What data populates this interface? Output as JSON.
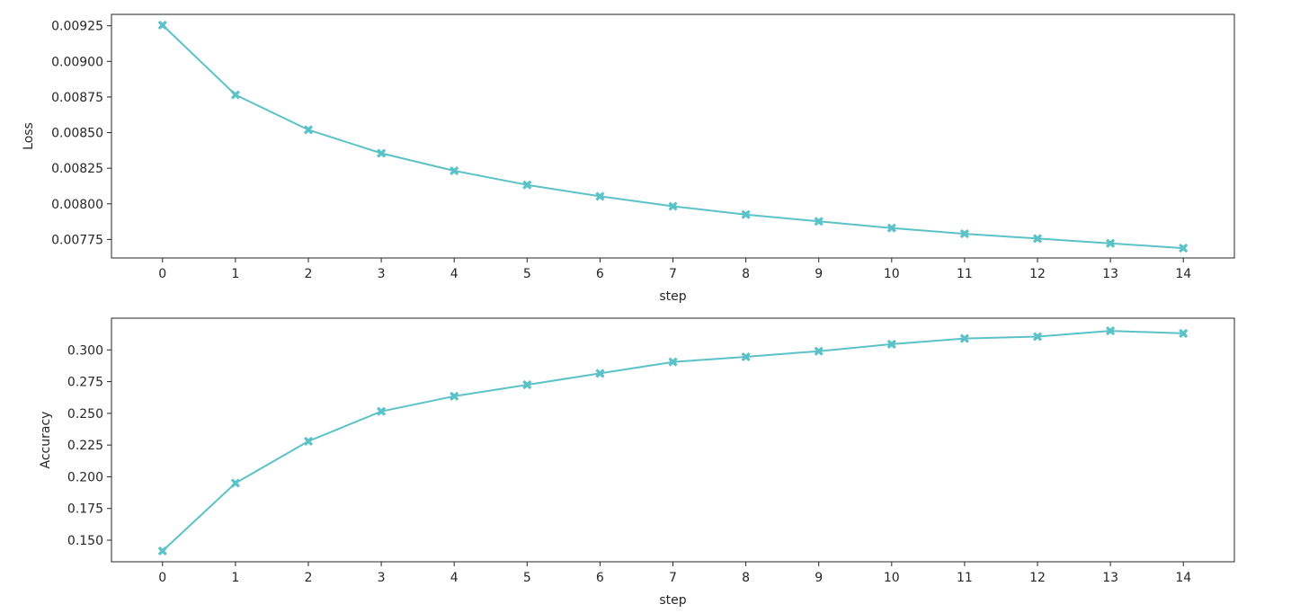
{
  "chart_data": [
    {
      "type": "line",
      "xlabel": "step",
      "ylabel": "Loss",
      "x": [
        0,
        1,
        2,
        3,
        4,
        5,
        6,
        7,
        8,
        9,
        10,
        11,
        12,
        13,
        14
      ],
      "xticks": [
        "0",
        "1",
        "2",
        "3",
        "4",
        "5",
        "6",
        "7",
        "8",
        "9",
        "10",
        "11",
        "12",
        "13",
        "14"
      ],
      "xlim": [
        -0.7,
        14.7
      ],
      "ylim": [
        0.00762,
        0.00933
      ],
      "yticks": [
        0.00775,
        0.008,
        0.00825,
        0.0085,
        0.00875,
        0.009,
        0.00925
      ],
      "ytick_labels": [
        "0.00775",
        "0.00800",
        "0.00825",
        "0.00850",
        "0.00875",
        "0.00900",
        "0.00925"
      ],
      "grid": false,
      "series": [
        {
          "values": [
            0.009255,
            0.008765,
            0.00852,
            0.008355,
            0.008232,
            0.008133,
            0.008053,
            0.007983,
            0.007925,
            0.007877,
            0.00783,
            0.00779,
            0.007756,
            0.007723,
            0.007689
          ],
          "color": "#5bc2c8",
          "marker": "X"
        }
      ]
    },
    {
      "type": "line",
      "xlabel": "step",
      "ylabel": "Accuracy",
      "x": [
        0,
        1,
        2,
        3,
        4,
        5,
        6,
        7,
        8,
        9,
        10,
        11,
        12,
        13,
        14
      ],
      "xticks": [
        "0",
        "1",
        "2",
        "3",
        "4",
        "5",
        "6",
        "7",
        "8",
        "9",
        "10",
        "11",
        "12",
        "13",
        "14"
      ],
      "xlim": [
        -0.7,
        14.7
      ],
      "ylim": [
        0.133,
        0.325
      ],
      "yticks": [
        0.15,
        0.175,
        0.2,
        0.225,
        0.25,
        0.275,
        0.3
      ],
      "ytick_labels": [
        "0.150",
        "0.175",
        "0.200",
        "0.225",
        "0.250",
        "0.275",
        "0.300"
      ],
      "grid": false,
      "series": [
        {
          "values": [
            0.1415,
            0.195,
            0.228,
            0.2515,
            0.2635,
            0.2725,
            0.2815,
            0.2905,
            0.2945,
            0.299,
            0.3045,
            0.309,
            0.3105,
            0.315,
            0.313
          ],
          "color": "#5bc2c8",
          "marker": "X"
        }
      ]
    }
  ]
}
